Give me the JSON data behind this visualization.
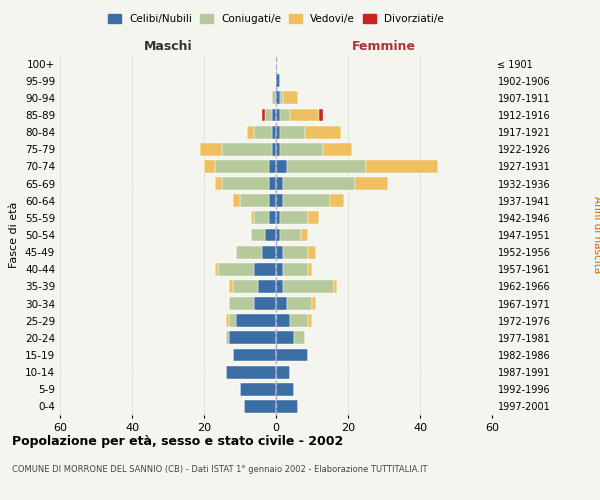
{
  "age_groups": [
    "0-4",
    "5-9",
    "10-14",
    "15-19",
    "20-24",
    "25-29",
    "30-34",
    "35-39",
    "40-44",
    "45-49",
    "50-54",
    "55-59",
    "60-64",
    "65-69",
    "70-74",
    "75-79",
    "80-84",
    "85-89",
    "90-94",
    "95-99",
    "100+"
  ],
  "birth_years": [
    "1997-2001",
    "1992-1996",
    "1987-1991",
    "1982-1986",
    "1977-1981",
    "1972-1976",
    "1967-1971",
    "1962-1966",
    "1957-1961",
    "1952-1956",
    "1947-1951",
    "1942-1946",
    "1937-1941",
    "1932-1936",
    "1927-1931",
    "1922-1926",
    "1917-1921",
    "1912-1916",
    "1907-1911",
    "1902-1906",
    "≤ 1901"
  ],
  "males": {
    "celibi": [
      9,
      10,
      14,
      12,
      13,
      11,
      6,
      5,
      6,
      4,
      3,
      2,
      2,
      2,
      2,
      1,
      1,
      1,
      0,
      0,
      0
    ],
    "coniugati": [
      0,
      0,
      0,
      0,
      1,
      2,
      7,
      7,
      10,
      7,
      4,
      4,
      8,
      13,
      15,
      14,
      5,
      2,
      1,
      0,
      0
    ],
    "vedovi": [
      0,
      0,
      0,
      0,
      0,
      1,
      0,
      1,
      1,
      0,
      0,
      1,
      2,
      2,
      3,
      6,
      2,
      0,
      0,
      0,
      0
    ],
    "divorziati": [
      0,
      0,
      0,
      0,
      0,
      0,
      0,
      0,
      0,
      0,
      0,
      0,
      0,
      0,
      0,
      0,
      0,
      1,
      0,
      0,
      0
    ]
  },
  "females": {
    "nubili": [
      6,
      5,
      4,
      9,
      5,
      4,
      3,
      2,
      2,
      2,
      1,
      1,
      2,
      2,
      3,
      1,
      1,
      1,
      1,
      1,
      0
    ],
    "coniugate": [
      0,
      0,
      0,
      0,
      3,
      5,
      7,
      14,
      7,
      7,
      6,
      8,
      13,
      20,
      22,
      12,
      7,
      3,
      1,
      0,
      0
    ],
    "vedove": [
      0,
      0,
      0,
      0,
      0,
      1,
      1,
      1,
      1,
      2,
      2,
      3,
      4,
      9,
      20,
      8,
      10,
      8,
      4,
      0,
      0
    ],
    "divorziate": [
      0,
      0,
      0,
      0,
      0,
      0,
      0,
      0,
      0,
      0,
      0,
      0,
      0,
      0,
      0,
      0,
      0,
      1,
      0,
      0,
      0
    ]
  },
  "colors": {
    "celibi": "#3b6ea5",
    "coniugati": "#b5c99a",
    "vedovi": "#f0c060",
    "divorziati": "#cc2222"
  },
  "title": "Popolazione per età, sesso e stato civile - 2002",
  "subtitle": "COMUNE DI MORRONE DEL SANNIO (CB) - Dati ISTAT 1° gennaio 2002 - Elaborazione TUTTITALIA.IT",
  "ylabel_left": "Fasce di età",
  "ylabel_right": "Anni di nascita",
  "xlabel_left": "Maschi",
  "xlabel_right": "Femmine",
  "xlim": 60,
  "background_color": "#f5f5f0",
  "legend_labels": [
    "Celibi/Nubili",
    "Coniugati/e",
    "Vedovi/e",
    "Divorziati/e"
  ]
}
